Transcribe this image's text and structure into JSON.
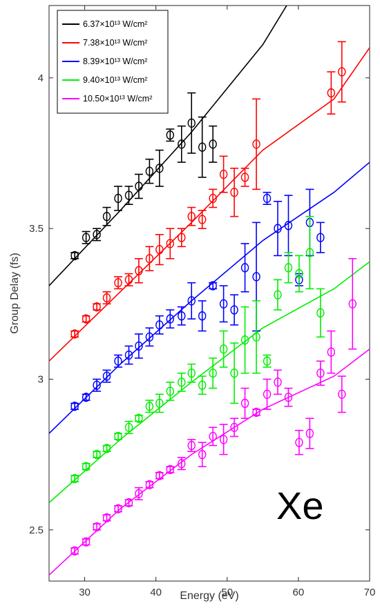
{
  "chart_data": {
    "type": "scatter",
    "xlabel": "Energy (eV)",
    "ylabel": "Group Delay (fs)",
    "xlim": [
      25,
      70
    ],
    "ylim": [
      2.33,
      4.24
    ],
    "xticks": [
      30,
      40,
      50,
      60,
      70
    ],
    "yticks": [
      2.5,
      3,
      3.5,
      4
    ],
    "ytick_labels": [
      "2.5",
      "3",
      "3.5",
      "4"
    ],
    "annotation": "Xe",
    "legend_position": "top-left",
    "series": [
      {
        "name": "6.37×10¹³ W/cm²",
        "color": "#000000",
        "fit": [
          [
            25,
            3.31
          ],
          [
            35,
            3.56
          ],
          [
            45,
            3.82
          ],
          [
            55,
            4.11
          ],
          [
            63,
            4.42
          ]
        ],
        "points": [
          [
            28.6,
            3.41,
            0.01
          ],
          [
            30.2,
            3.47,
            0.02
          ],
          [
            31.7,
            3.48,
            0.02
          ],
          [
            33.1,
            3.54,
            0.03
          ],
          [
            34.7,
            3.6,
            0.04
          ],
          [
            36.2,
            3.61,
            0.03
          ],
          [
            37.6,
            3.64,
            0.04
          ],
          [
            39.1,
            3.69,
            0.04
          ],
          [
            40.5,
            3.7,
            0.06
          ],
          [
            42.0,
            3.81,
            0.02
          ],
          [
            43.6,
            3.78,
            0.06
          ],
          [
            45.0,
            3.85,
            0.1
          ],
          [
            46.5,
            3.77,
            0.1
          ],
          [
            48.0,
            3.78,
            0.06
          ]
        ]
      },
      {
        "name": "7.38×10¹³ W/cm²",
        "color": "#ff0000",
        "fit": [
          [
            25,
            3.06
          ],
          [
            35,
            3.29
          ],
          [
            45,
            3.52
          ],
          [
            55,
            3.76
          ],
          [
            65,
            3.93
          ],
          [
            70,
            4.1
          ]
        ],
        "points": [
          [
            28.6,
            3.15,
            0.01
          ],
          [
            30.2,
            3.2,
            0.01
          ],
          [
            31.7,
            3.24,
            0.01
          ],
          [
            33.1,
            3.27,
            0.02
          ],
          [
            34.7,
            3.32,
            0.02
          ],
          [
            36.2,
            3.33,
            0.02
          ],
          [
            37.6,
            3.36,
            0.04
          ],
          [
            39.1,
            3.4,
            0.04
          ],
          [
            40.5,
            3.43,
            0.05
          ],
          [
            42.0,
            3.45,
            0.05
          ],
          [
            43.6,
            3.47,
            0.03
          ],
          [
            45.0,
            3.54,
            0.03
          ],
          [
            46.5,
            3.53,
            0.03
          ],
          [
            48.0,
            3.6,
            0.03
          ],
          [
            49.5,
            3.68,
            0.06
          ],
          [
            51.0,
            3.62,
            0.08
          ],
          [
            52.5,
            3.67,
            0.03
          ],
          [
            54.1,
            3.78,
            0.15
          ],
          [
            64.6,
            3.95,
            0.07
          ],
          [
            66.1,
            4.02,
            0.1
          ]
        ]
      },
      {
        "name": "8.39×10¹³ W/cm²",
        "color": "#0000ff",
        "fit": [
          [
            25,
            2.82
          ],
          [
            35,
            3.05
          ],
          [
            45,
            3.26
          ],
          [
            55,
            3.46
          ],
          [
            65,
            3.62
          ],
          [
            70,
            3.72
          ]
        ],
        "points": [
          [
            28.6,
            2.91,
            0.01
          ],
          [
            30.2,
            2.94,
            0.01
          ],
          [
            31.7,
            2.98,
            0.02
          ],
          [
            33.1,
            3.01,
            0.02
          ],
          [
            34.7,
            3.06,
            0.02
          ],
          [
            36.2,
            3.08,
            0.03
          ],
          [
            37.6,
            3.11,
            0.04
          ],
          [
            39.1,
            3.14,
            0.03
          ],
          [
            40.5,
            3.18,
            0.03
          ],
          [
            42.0,
            3.2,
            0.03
          ],
          [
            43.6,
            3.21,
            0.03
          ],
          [
            45.0,
            3.26,
            0.06
          ],
          [
            46.5,
            3.21,
            0.05
          ],
          [
            48.0,
            3.31,
            0.01
          ],
          [
            49.5,
            3.25,
            0.06
          ],
          [
            51.0,
            3.23,
            0.05
          ],
          [
            52.5,
            3.37,
            0.08
          ],
          [
            54.1,
            3.34,
            0.18
          ],
          [
            55.6,
            3.6,
            0.02
          ],
          [
            57.1,
            3.5,
            0.09
          ],
          [
            58.6,
            3.51,
            0.1
          ],
          [
            60.1,
            3.33,
            0.02
          ],
          [
            61.6,
            3.52,
            0.11
          ],
          [
            63.1,
            3.47,
            0.05
          ]
        ]
      },
      {
        "name": "9.40×10¹³ W/cm²",
        "color": "#00ee00",
        "fit": [
          [
            25,
            2.59
          ],
          [
            35,
            2.8
          ],
          [
            45,
            2.99
          ],
          [
            55,
            3.17
          ],
          [
            65,
            3.3
          ],
          [
            70,
            3.39
          ]
        ],
        "points": [
          [
            28.6,
            2.67,
            0.01
          ],
          [
            30.2,
            2.71,
            0.01
          ],
          [
            31.7,
            2.75,
            0.01
          ],
          [
            33.1,
            2.77,
            0.01
          ],
          [
            34.7,
            2.81,
            0.01
          ],
          [
            36.2,
            2.84,
            0.02
          ],
          [
            37.6,
            2.87,
            0.01
          ],
          [
            39.1,
            2.91,
            0.02
          ],
          [
            40.5,
            2.92,
            0.03
          ],
          [
            42.0,
            2.96,
            0.03
          ],
          [
            43.6,
            2.99,
            0.03
          ],
          [
            45.0,
            3.02,
            0.03
          ],
          [
            46.5,
            2.98,
            0.03
          ],
          [
            48.0,
            3.02,
            0.05
          ],
          [
            49.5,
            3.1,
            0.06
          ],
          [
            51.0,
            3.02,
            0.1
          ],
          [
            52.5,
            3.13,
            0.11
          ],
          [
            54.1,
            3.14,
            0.12
          ],
          [
            55.6,
            3.06,
            0.02
          ],
          [
            57.1,
            3.28,
            0.05
          ],
          [
            58.6,
            3.37,
            0.05
          ],
          [
            60.1,
            3.35,
            0.06
          ],
          [
            61.6,
            3.42,
            0.12
          ],
          [
            63.1,
            3.22,
            0.08
          ]
        ]
      },
      {
        "name": "10.50×10¹³ W/cm²",
        "color": "#ff00ff",
        "fit": [
          [
            25,
            2.35
          ],
          [
            35,
            2.57
          ],
          [
            45,
            2.75
          ],
          [
            55,
            2.9
          ],
          [
            65,
            3.01
          ],
          [
            70,
            3.1
          ]
        ],
        "points": [
          [
            28.6,
            2.43,
            0.01
          ],
          [
            30.2,
            2.46,
            0.01
          ],
          [
            31.7,
            2.51,
            0.01
          ],
          [
            33.1,
            2.54,
            0.01
          ],
          [
            34.7,
            2.57,
            0.01
          ],
          [
            36.2,
            2.59,
            0.01
          ],
          [
            37.6,
            2.62,
            0.02
          ],
          [
            39.1,
            2.65,
            0.01
          ],
          [
            40.5,
            2.68,
            0.01
          ],
          [
            42.0,
            2.7,
            0.01
          ],
          [
            43.6,
            2.72,
            0.02
          ],
          [
            45.0,
            2.78,
            0.02
          ],
          [
            46.5,
            2.75,
            0.04
          ],
          [
            48.0,
            2.81,
            0.03
          ],
          [
            49.5,
            2.8,
            0.05
          ],
          [
            51.0,
            2.84,
            0.03
          ],
          [
            52.5,
            2.92,
            0.05
          ],
          [
            54.1,
            2.89,
            0.01
          ],
          [
            55.6,
            2.95,
            0.05
          ],
          [
            57.1,
            2.99,
            0.04
          ],
          [
            58.6,
            2.94,
            0.03
          ],
          [
            60.1,
            2.79,
            0.04
          ],
          [
            61.6,
            2.82,
            0.05
          ],
          [
            63.1,
            3.02,
            0.04
          ],
          [
            64.6,
            3.09,
            0.07
          ],
          [
            66.1,
            2.95,
            0.06
          ],
          [
            67.6,
            3.25,
            0.15
          ]
        ]
      }
    ]
  }
}
